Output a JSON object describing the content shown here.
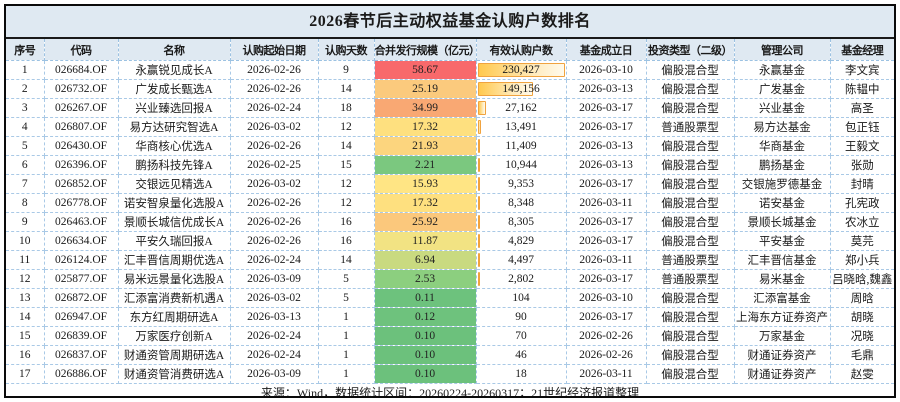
{
  "title": "2026春节后主动权益基金认购户数排名",
  "footer": {
    "source_note": "来源：Wind，数据统计区间：20260224-20260317；21世纪经济报道整理"
  },
  "colors": {
    "header_bg": "#dfe9f2",
    "frame_border": "#0a0a0a",
    "grid_dashed": "#a9c9e6",
    "databar_fill": "#ffc94f",
    "databar_border": "#f0a33f",
    "scale_max_red": "#f8696b",
    "scale_mid_yellow": "#ffeb84",
    "scale_min_green": "#63be7b"
  },
  "chart_data": {
    "type": "table",
    "title": "2026春节后主动权益基金认购户数排名",
    "columns": [
      "序号",
      "代码",
      "名称",
      "认购起始日期",
      "认购天数",
      "合并发行规模（亿元）",
      "有效认购户数",
      "基金成立日",
      "投资类型（二级）",
      "管理公司",
      "基金经理"
    ],
    "conditional_formatting": {
      "color_scale_column": "合并发行规模（亿元）",
      "color_scale": "3色阶：红(最大58.67)→黄→绿(最小0.10)",
      "databar_column": "有效认购户数",
      "databar_max": 230427
    },
    "rows": [
      {
        "no": "1",
        "code": "026684.OF",
        "name": "永赢锐见成长A",
        "start_date": "2026-02-26",
        "days": "9",
        "scale": "58.67",
        "scale_color": "#f8696b",
        "subscribers": "230,427",
        "subscribers_value": 230427,
        "establish_date": "2026-03-10",
        "type": "偏股混合型",
        "company": "永赢基金",
        "manager": "李文宾"
      },
      {
        "no": "2",
        "code": "026732.OF",
        "name": "广发成长甄选A",
        "start_date": "2026-02-26",
        "days": "14",
        "scale": "25.19",
        "scale_color": "#fbca7d",
        "subscribers": "149,156",
        "subscribers_value": 149156,
        "establish_date": "2026-03-13",
        "type": "偏股混合型",
        "company": "广发基金",
        "manager": "陈韫中"
      },
      {
        "no": "3",
        "code": "026267.OF",
        "name": "兴业臻选回报A",
        "start_date": "2026-02-24",
        "days": "18",
        "scale": "34.99",
        "scale_color": "#f9a873",
        "subscribers": "27,162",
        "subscribers_value": 27162,
        "establish_date": "2026-03-17",
        "type": "偏股混合型",
        "company": "兴业基金",
        "manager": "高圣"
      },
      {
        "no": "4",
        "code": "026807.OF",
        "name": "易方达研究智选A",
        "start_date": "2026-03-02",
        "days": "12",
        "scale": "17.32",
        "scale_color": "#fee07f",
        "subscribers": "13,491",
        "subscribers_value": 13491,
        "establish_date": "2026-03-17",
        "type": "普通股票型",
        "company": "易方达基金",
        "manager": "包正钰"
      },
      {
        "no": "5",
        "code": "026430.OF",
        "name": "华商核心优选A",
        "start_date": "2026-02-26",
        "days": "14",
        "scale": "21.93",
        "scale_color": "#fcd57e",
        "subscribers": "11,409",
        "subscribers_value": 11409,
        "establish_date": "2026-03-13",
        "type": "偏股混合型",
        "company": "华商基金",
        "manager": "王毅文"
      },
      {
        "no": "6",
        "code": "026396.OF",
        "name": "鹏扬科技先锋A",
        "start_date": "2026-02-25",
        "days": "15",
        "scale": "2.21",
        "scale_color": "#7bc87f",
        "subscribers": "10,944",
        "subscribers_value": 10944,
        "establish_date": "2026-03-13",
        "type": "偏股混合型",
        "company": "鹏扬基金",
        "manager": "张勋"
      },
      {
        "no": "7",
        "code": "026852.OF",
        "name": "交银远见精选A",
        "start_date": "2026-03-02",
        "days": "12",
        "scale": "15.93",
        "scale_color": "#ffe584",
        "subscribers": "9,353",
        "subscribers_value": 9353,
        "establish_date": "2026-03-17",
        "type": "偏股混合型",
        "company": "交银施罗德基金",
        "manager": "封晴"
      },
      {
        "no": "8",
        "code": "026778.OF",
        "name": "诺安智泉量化选股A",
        "start_date": "2026-02-26",
        "days": "12",
        "scale": "17.32",
        "scale_color": "#fee07f",
        "subscribers": "8,348",
        "subscribers_value": 8348,
        "establish_date": "2026-03-11",
        "type": "偏股混合型",
        "company": "诺安基金",
        "manager": "孔宪政"
      },
      {
        "no": "9",
        "code": "026463.OF",
        "name": "景顺长城信优成长A",
        "start_date": "2026-02-26",
        "days": "16",
        "scale": "25.92",
        "scale_color": "#fbc87c",
        "subscribers": "8,305",
        "subscribers_value": 8305,
        "establish_date": "2026-03-17",
        "type": "偏股混合型",
        "company": "景顺长城基金",
        "manager": "农冰立"
      },
      {
        "no": "10",
        "code": "026634.OF",
        "name": "平安久瑞回报A",
        "start_date": "2026-02-26",
        "days": "16",
        "scale": "11.87",
        "scale_color": "#f2e383",
        "subscribers": "4,829",
        "subscribers_value": 4829,
        "establish_date": "2026-03-17",
        "type": "偏股混合型",
        "company": "平安基金",
        "manager": "莫芫"
      },
      {
        "no": "11",
        "code": "026124.OF",
        "name": "汇丰晋信周期优选A",
        "start_date": "2026-02-24",
        "days": "14",
        "scale": "6.94",
        "scale_color": "#c9da80",
        "subscribers": "4,497",
        "subscribers_value": 4497,
        "establish_date": "2026-03-11",
        "type": "普通股票型",
        "company": "汇丰晋信基金",
        "manager": "郑小兵"
      },
      {
        "no": "12",
        "code": "025877.OF",
        "name": "易米远景量化选股A",
        "start_date": "2026-03-09",
        "days": "5",
        "scale": "2.53",
        "scale_color": "#8ccf7f",
        "subscribers": "2,802",
        "subscribers_value": 2802,
        "establish_date": "2026-03-17",
        "type": "普通股票型",
        "company": "易米基金",
        "manager": "吕晓晗,魏鑫"
      },
      {
        "no": "13",
        "code": "026872.OF",
        "name": "汇添富消费新机遇A",
        "start_date": "2026-03-02",
        "days": "5",
        "scale": "0.11",
        "scale_color": "#6dc27d",
        "subscribers": "104",
        "subscribers_value": 104,
        "establish_date": "2026-03-10",
        "type": "偏股混合型",
        "company": "汇添富基金",
        "manager": "周晗"
      },
      {
        "no": "14",
        "code": "026947.OF",
        "name": "东方红周期研选A",
        "start_date": "2026-03-13",
        "days": "1",
        "scale": "0.12",
        "scale_color": "#6ec27d",
        "subscribers": "90",
        "subscribers_value": 90,
        "establish_date": "2026-03-17",
        "type": "偏股混合型",
        "company": "上海东方证券资产",
        "manager": "胡晓"
      },
      {
        "no": "15",
        "code": "026839.OF",
        "name": "万家医疗创新A",
        "start_date": "2026-02-24",
        "days": "1",
        "scale": "0.10",
        "scale_color": "#6cc17c",
        "subscribers": "70",
        "subscribers_value": 70,
        "establish_date": "2026-02-26",
        "type": "偏股混合型",
        "company": "万家基金",
        "manager": "况晓"
      },
      {
        "no": "16",
        "code": "026837.OF",
        "name": "财通资管周期研选A",
        "start_date": "2026-02-24",
        "days": "1",
        "scale": "0.10",
        "scale_color": "#6cc17c",
        "subscribers": "46",
        "subscribers_value": 46,
        "establish_date": "2026-02-26",
        "type": "偏股混合型",
        "company": "财通证券资产",
        "manager": "毛鼎"
      },
      {
        "no": "17",
        "code": "026886.OF",
        "name": "财通资管消费研选A",
        "start_date": "2026-03-09",
        "days": "1",
        "scale": "0.10",
        "scale_color": "#6cc17c",
        "subscribers": "18",
        "subscribers_value": 18,
        "establish_date": "2026-03-11",
        "type": "偏股混合型",
        "company": "财通证券资产",
        "manager": "赵雯"
      }
    ]
  }
}
